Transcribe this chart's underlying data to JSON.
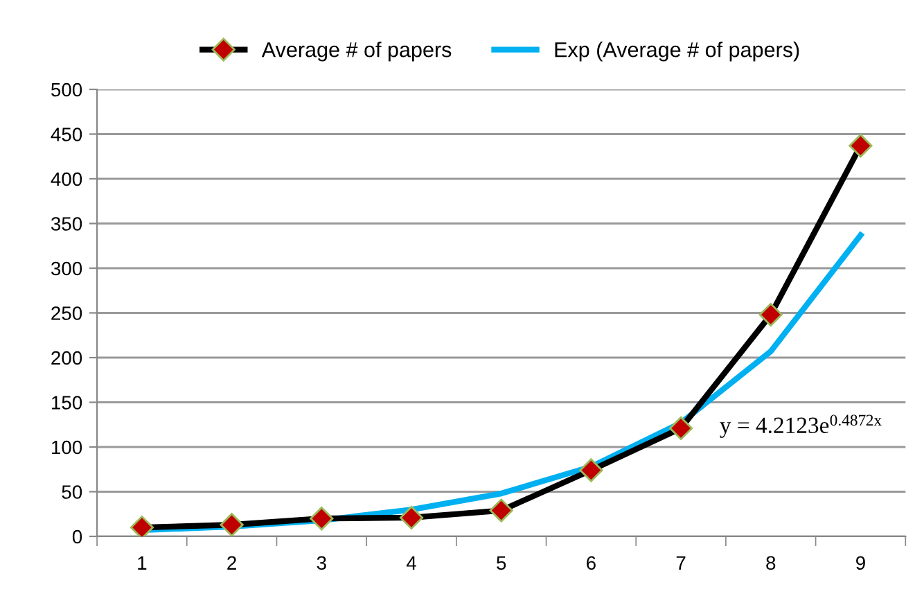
{
  "chart_data": {
    "type": "line",
    "categories": [
      "1",
      "2",
      "3",
      "4",
      "5",
      "6",
      "7",
      "8",
      "9"
    ],
    "series": [
      {
        "name": "Average # of papers",
        "color": "#000000",
        "marker": "diamond",
        "values": [
          10,
          13,
          20,
          21,
          29,
          74,
          121,
          248,
          437
        ]
      },
      {
        "name": "Exp (Average # of papers)",
        "color": "#00b0f0",
        "marker": "none",
        "values": [
          7,
          11,
          18,
          30,
          48,
          78,
          127,
          207,
          337
        ]
      }
    ],
    "ylim": [
      0,
      500
    ],
    "yticks": [
      0,
      50,
      100,
      150,
      200,
      250,
      300,
      350,
      400,
      450,
      500
    ],
    "grid": "y",
    "legend": "top",
    "annotations": [
      "y = 4.2123e$^{0.4872x}$"
    ]
  }
}
